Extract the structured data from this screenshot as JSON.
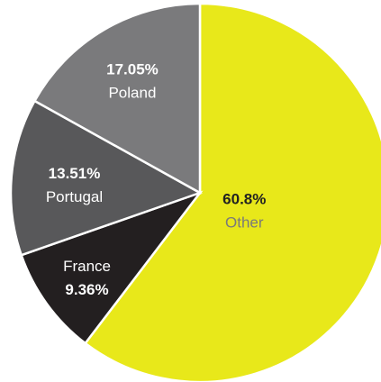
{
  "chart_data": {
    "type": "pie",
    "title": "",
    "slices": [
      {
        "label": "Other",
        "value": 60.8,
        "display": "60.8%",
        "color": "#e8e81a",
        "label_color": "#7a7a7a",
        "value_color": "#222222",
        "value_first": true
      },
      {
        "label": "France",
        "value": 9.36,
        "display": "9.36%",
        "color": "#231f20",
        "label_color": "#ffffff",
        "value_color": "#ffffff",
        "value_first": false
      },
      {
        "label": "Portugal",
        "value": 13.51,
        "display": "13.51%",
        "color": "#58585a",
        "label_color": "#ffffff",
        "value_color": "#ffffff",
        "value_first": true
      },
      {
        "label": "Poland",
        "value": 17.05,
        "display": "17.05%",
        "color": "#7a7a7c",
        "label_color": "#ffffff",
        "value_color": "#ffffff",
        "value_first": true
      }
    ]
  }
}
